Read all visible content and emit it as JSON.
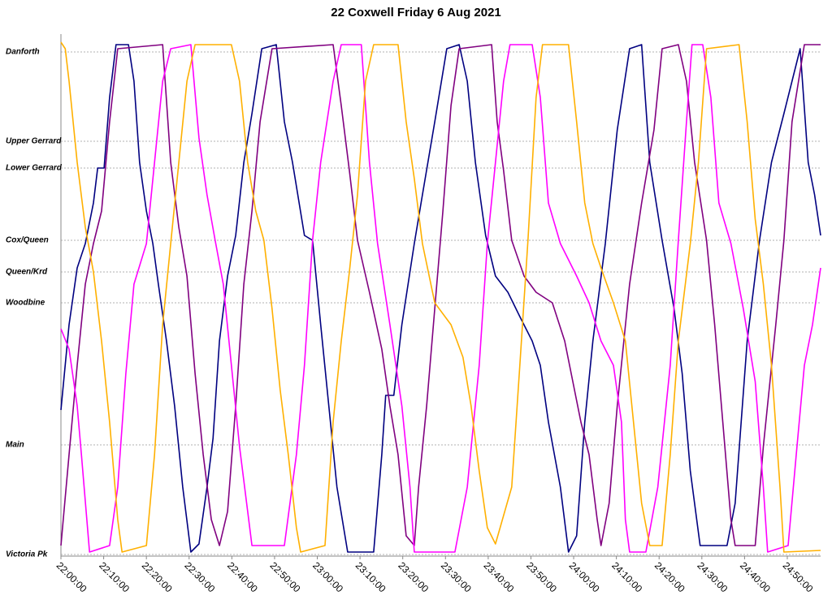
{
  "chart_data": {
    "type": "line",
    "title": "22 Coxwell Friday 6 Aug 2021",
    "xlim": [
      0,
      177.8
    ],
    "ylim": [
      -2,
      641
    ],
    "grid": true,
    "xticks": [
      {
        "value": 0,
        "label": "22:00:00"
      },
      {
        "value": 10,
        "label": "22:10:00"
      },
      {
        "value": 20,
        "label": "22:20:00"
      },
      {
        "value": 30,
        "label": "22:30:00"
      },
      {
        "value": 40,
        "label": "22:40:00"
      },
      {
        "value": 50,
        "label": "22:50:00"
      },
      {
        "value": 60,
        "label": "23:00:00"
      },
      {
        "value": 70,
        "label": "23:10:00"
      },
      {
        "value": 80,
        "label": "23:20:00"
      },
      {
        "value": 90,
        "label": "23:30:00"
      },
      {
        "value": 100,
        "label": "23:40:00"
      },
      {
        "value": 110,
        "label": "23:50:00"
      },
      {
        "value": 120,
        "label": "24:00:00"
      },
      {
        "value": 130,
        "label": "24:10:00"
      },
      {
        "value": 140,
        "label": "24:20:00"
      },
      {
        "value": 150,
        "label": "24:30:00"
      },
      {
        "value": 160,
        "label": "24:40:00"
      },
      {
        "value": 170,
        "label": "24:50:00"
      }
    ],
    "yticks": [
      {
        "value": 619,
        "label": "Danforth"
      },
      {
        "value": 509,
        "label": "Upper Gerrard"
      },
      {
        "value": 476,
        "label": "Lower Gerrard"
      },
      {
        "value": 387,
        "label": "Cox/Queen"
      },
      {
        "value": 348,
        "label": "Queen/Krd"
      },
      {
        "value": 310,
        "label": "Woodbine"
      },
      {
        "value": 135,
        "label": "Main"
      },
      {
        "value": 0,
        "label": "Victoria Pk"
      }
    ],
    "series": [
      {
        "color": "#000080",
        "x": [
          0,
          1.9,
          3.8,
          5.7,
          7.6,
          8.6,
          10.1,
          11.4,
          12.9,
          15.8,
          17.1,
          18.4,
          20.0,
          21.5,
          22.8,
          24.7,
          26.6,
          28.5,
          30.4,
          32.3,
          34.2,
          35.6,
          37.1,
          39.0,
          40.9,
          42.8,
          44.7,
          47.0,
          50.4,
          52.3,
          54.2,
          57.0,
          58.9,
          60.8,
          62.7,
          64.6,
          67.1,
          73.2,
          75.1,
          76.0,
          77.9,
          79.8,
          82.7,
          84.6,
          87.5,
          90.3,
          93.2,
          95.1,
          97.0,
          99.4,
          101.7,
          104.6,
          107.4,
          110.3,
          112.2,
          114.1,
          116.9,
          118.8,
          120.7,
          122.6,
          124.5,
          127.4,
          130.2,
          133.1,
          135.9,
          137.8,
          140.7,
          143.5,
          145.4,
          147.3,
          149.6,
          155.9,
          157.8,
          160.6,
          163.5,
          166.3,
          169.2,
          173.0,
          174.9,
          176.4,
          177.8
        ],
        "values": [
          178,
          283,
          353,
          383,
          433,
          476,
          476,
          563,
          628,
          628,
          583,
          483,
          423,
          383,
          333,
          263,
          183,
          83,
          3,
          13,
          83,
          143,
          263,
          343,
          393,
          483,
          543,
          623,
          628,
          533,
          483,
          393,
          387,
          283,
          183,
          83,
          3,
          3,
          123,
          196,
          196,
          283,
          383,
          443,
          533,
          623,
          628,
          583,
          483,
          393,
          343,
          323,
          293,
          263,
          233,
          163,
          83,
          3,
          23,
          163,
          263,
          383,
          523,
          623,
          628,
          483,
          387,
          303,
          223,
          103,
          11,
          11,
          63,
          263,
          387,
          483,
          543,
          623,
          483,
          443,
          393
        ]
      },
      {
        "color": "#800080",
        "x": [
          0,
          1.9,
          3.8,
          5.7,
          7.6,
          9.5,
          11.4,
          13.3,
          23.8,
          25.7,
          27.6,
          29.5,
          31.4,
          33.3,
          35.2,
          37.1,
          39.0,
          40.9,
          42.8,
          44.7,
          46.6,
          49.4,
          63.7,
          65.6,
          67.5,
          69.4,
          72.2,
          75.1,
          77.0,
          78.9,
          80.8,
          82.7,
          83.7,
          85.6,
          87.5,
          89.4,
          91.3,
          93.2,
          100.8,
          102.1,
          103.6,
          105.5,
          108.4,
          111.2,
          115.0,
          117.9,
          119.8,
          121.7,
          123.6,
          125.5,
          126.4,
          128.3,
          130.2,
          133.1,
          135.9,
          138.8,
          140.7,
          144.5,
          146.4,
          148.3,
          151.1,
          153.0,
          154.9,
          156.8,
          157.8,
          162.5,
          164.4,
          167.3,
          169.2,
          171.1,
          174.0,
          177.8
        ],
        "values": [
          11,
          123,
          233,
          333,
          383,
          423,
          533,
          623,
          628,
          483,
          403,
          343,
          223,
          123,
          43,
          11,
          53,
          183,
          333,
          423,
          533,
          623,
          628,
          553,
          473,
          387,
          323,
          253,
          183,
          123,
          23,
          11,
          83,
          183,
          303,
          423,
          553,
          623,
          628,
          533,
          473,
          387,
          343,
          323,
          310,
          263,
          213,
          163,
          123,
          43,
          11,
          63,
          183,
          333,
          433,
          523,
          623,
          628,
          583,
          483,
          387,
          283,
          163,
          43,
          11,
          11,
          133,
          283,
          387,
          533,
          628,
          628
        ]
      },
      {
        "color": "#ff00ff",
        "x": [
          0,
          1.9,
          3.8,
          4.8,
          6.7,
          11.4,
          13.3,
          15.2,
          17.1,
          20.0,
          21.9,
          23.8,
          25.7,
          30.4,
          32.3,
          34.2,
          36.1,
          38.0,
          39.9,
          41.8,
          44.7,
          52.3,
          55.1,
          57.0,
          58.9,
          60.8,
          63.7,
          65.6,
          70.3,
          72.2,
          74.1,
          77.0,
          79.8,
          81.7,
          82.7,
          92.2,
          95.1,
          97.9,
          99.8,
          101.7,
          103.6,
          105.1,
          110.3,
          112.2,
          114.1,
          116.9,
          120.7,
          123.6,
          126.4,
          129.3,
          131.2,
          132.1,
          133.1,
          136.9,
          139.7,
          142.6,
          144.5,
          146.4,
          147.7,
          150.2,
          152.1,
          154.0,
          156.8,
          159.7,
          162.5,
          164.4,
          165.4,
          170.2,
          172.1,
          174.0,
          175.9,
          177.8
        ],
        "values": [
          278,
          253,
          183,
          123,
          3,
          11,
          83,
          223,
          333,
          383,
          483,
          583,
          623,
          628,
          513,
          443,
          387,
          333,
          233,
          133,
          11,
          11,
          123,
          233,
          387,
          483,
          583,
          628,
          628,
          483,
          383,
          283,
          183,
          83,
          3,
          3,
          83,
          233,
          383,
          483,
          583,
          628,
          628,
          563,
          433,
          383,
          343,
          310,
          263,
          233,
          163,
          43,
          3,
          3,
          83,
          233,
          387,
          533,
          628,
          628,
          563,
          433,
          383,
          303,
          213,
          83,
          3,
          11,
          123,
          233,
          283,
          353
        ]
      },
      {
        "color": "#ffb000",
        "x": [
          0,
          1.0,
          1.9,
          3.8,
          5.7,
          7.6,
          9.5,
          11.4,
          13.3,
          14.3,
          20.0,
          21.9,
          23.8,
          25.7,
          27.6,
          29.5,
          31.4,
          39.9,
          41.8,
          43.7,
          45.6,
          47.5,
          49.4,
          51.3,
          53.2,
          55.1,
          56.1,
          61.8,
          63.7,
          65.6,
          67.5,
          69.4,
          71.3,
          73.2,
          78.9,
          80.8,
          82.7,
          84.6,
          87.5,
          91.3,
          94.1,
          96.0,
          97.9,
          99.8,
          101.7,
          105.5,
          107.4,
          109.3,
          111.2,
          112.7,
          118.8,
          120.7,
          122.6,
          124.5,
          126.4,
          129.3,
          132.1,
          134.0,
          135.9,
          137.8,
          140.7,
          142.6,
          144.5,
          147.3,
          149.2,
          151.1,
          158.7,
          160.6,
          162.5,
          164.4,
          166.3,
          168.3,
          169.2,
          177.8
        ],
        "values": [
          631,
          623,
          583,
          483,
          403,
          348,
          263,
          163,
          43,
          3,
          11,
          123,
          283,
          383,
          483,
          583,
          628,
          628,
          583,
          483,
          423,
          387,
          303,
          203,
          123,
          33,
          3,
          11,
          163,
          263,
          348,
          443,
          583,
          628,
          628,
          533,
          463,
          383,
          310,
          283,
          243,
          183,
          103,
          33,
          13,
          83,
          233,
          387,
          563,
          628,
          628,
          533,
          433,
          383,
          353,
          310,
          263,
          163,
          63,
          11,
          11,
          123,
          263,
          383,
          483,
          623,
          628,
          533,
          413,
          333,
          233,
          83,
          3,
          5
        ]
      }
    ]
  }
}
